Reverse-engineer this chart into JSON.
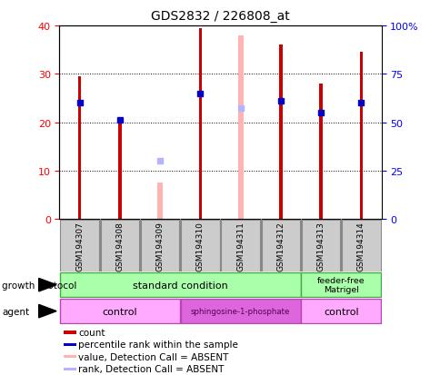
{
  "title": "GDS2832 / 226808_at",
  "samples": [
    "GSM194307",
    "GSM194308",
    "GSM194309",
    "GSM194310",
    "GSM194311",
    "GSM194312",
    "GSM194313",
    "GSM194314"
  ],
  "count": [
    29.5,
    20.2,
    null,
    39.5,
    null,
    36.0,
    28.0,
    34.5
  ],
  "percentile_rank": [
    24.0,
    20.5,
    null,
    26.0,
    null,
    24.5,
    22.0,
    24.0
  ],
  "absent_value": [
    null,
    null,
    7.5,
    null,
    38.0,
    null,
    null,
    null
  ],
  "absent_rank": [
    null,
    null,
    12.0,
    null,
    23.0,
    null,
    null,
    null
  ],
  "ylim_left": [
    0,
    40
  ],
  "ylim_right": [
    0,
    100
  ],
  "yticks_left": [
    0,
    10,
    20,
    30,
    40
  ],
  "yticks_right": [
    0,
    25,
    50,
    75,
    100
  ],
  "ytick_labels_right": [
    "0",
    "25",
    "50",
    "75",
    "100%"
  ],
  "color_count": "#cc0000",
  "color_rank": "#0000cc",
  "color_absent_value": "#ffb3b3",
  "color_absent_rank": "#b3b3ff",
  "legend_items": [
    {
      "label": "count",
      "color": "#cc0000"
    },
    {
      "label": "percentile rank within the sample",
      "color": "#0000cc"
    },
    {
      "label": "value, Detection Call = ABSENT",
      "color": "#ffb3b3"
    },
    {
      "label": "rank, Detection Call = ABSENT",
      "color": "#b3b3ff"
    }
  ]
}
